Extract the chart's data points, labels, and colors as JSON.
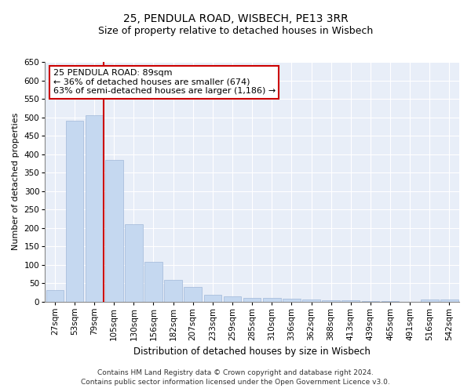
{
  "title": "25, PENDULA ROAD, WISBECH, PE13 3RR",
  "subtitle": "Size of property relative to detached houses in Wisbech",
  "xlabel": "Distribution of detached houses by size in Wisbech",
  "ylabel": "Number of detached properties",
  "bar_color": "#c5d8f0",
  "bar_edge_color": "#a0b8d8",
  "background_color": "#e8eef8",
  "grid_color": "#ffffff",
  "fig_bg_color": "#ffffff",
  "categories": [
    "27sqm",
    "53sqm",
    "79sqm",
    "105sqm",
    "130sqm",
    "156sqm",
    "182sqm",
    "207sqm",
    "233sqm",
    "259sqm",
    "285sqm",
    "310sqm",
    "336sqm",
    "362sqm",
    "388sqm",
    "413sqm",
    "439sqm",
    "465sqm",
    "491sqm",
    "516sqm",
    "542sqm"
  ],
  "values": [
    30,
    490,
    505,
    385,
    210,
    107,
    58,
    40,
    18,
    13,
    10,
    9,
    7,
    5,
    3,
    3,
    2,
    1,
    0,
    5,
    5
  ],
  "ylim": [
    0,
    650
  ],
  "yticks": [
    0,
    50,
    100,
    150,
    200,
    250,
    300,
    350,
    400,
    450,
    500,
    550,
    600,
    650
  ],
  "vline_x_index": 2,
  "vline_color": "#cc0000",
  "annotation_line1": "25 PENDULA ROAD: 89sqm",
  "annotation_line2": "← 36% of detached houses are smaller (674)",
  "annotation_line3": "63% of semi-detached houses are larger (1,186) →",
  "annotation_box_color": "#ffffff",
  "annotation_box_edge": "#cc0000",
  "footer_line1": "Contains HM Land Registry data © Crown copyright and database right 2024.",
  "footer_line2": "Contains public sector information licensed under the Open Government Licence v3.0.",
  "title_fontsize": 10,
  "subtitle_fontsize": 9,
  "xlabel_fontsize": 8.5,
  "ylabel_fontsize": 8,
  "tick_fontsize": 7.5,
  "annotation_fontsize": 8,
  "footer_fontsize": 6.5
}
